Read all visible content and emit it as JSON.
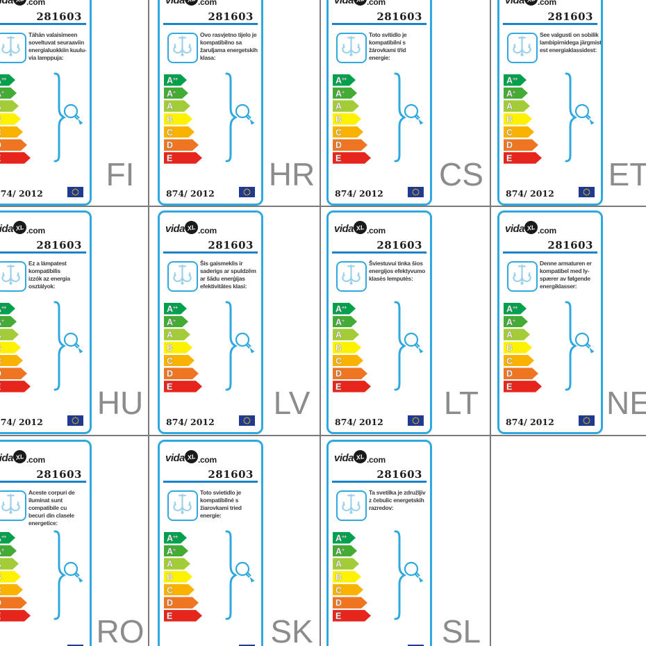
{
  "page": {
    "background": "#ffffff",
    "grid_line_color": "#7a7a7a"
  },
  "card": {
    "brand": {
      "prefix": "vida",
      "mark": "XL",
      "suffix": ".com"
    },
    "product_number": "281603",
    "regulation": "874/ 2012",
    "border_color": "#2FA8DF",
    "underline_color": "#1C82C8",
    "accent_blue": "#2FA8DF",
    "icon_blue": "#9BD0EB",
    "eu_flag": {
      "background": "#203A8F",
      "stars": "#FFCC00"
    },
    "arrows": [
      {
        "label": "A",
        "sup": "++",
        "color": "#00A04D",
        "width": 33
      },
      {
        "label": "A",
        "sup": "+",
        "color": "#44AC34",
        "width": 35
      },
      {
        "label": "A",
        "sup": "",
        "color": "#A3CC38",
        "width": 38
      },
      {
        "label": "B",
        "sup": "",
        "color": "#FFF200",
        "width": 41
      },
      {
        "label": "C",
        "sup": "",
        "color": "#F9B200",
        "width": 44
      },
      {
        "label": "D",
        "sup": "",
        "color": "#EE7623",
        "width": 50
      },
      {
        "label": "E",
        "sup": "",
        "color": "#E6261D",
        "width": 55
      }
    ]
  },
  "labels": [
    {
      "code": "FI",
      "col": 0,
      "row": 0,
      "description": "Tähän valaisimeen\nsoveltuvat seuraaviin\nenergialuokkiin kuulu-\nvia lamppuja:"
    },
    {
      "code": "HR",
      "col": 1,
      "row": 0,
      "description": "Ovo rasvjetno tijelo je\nkompatibilno sa\nžaruljama energetskih\nklasa:"
    },
    {
      "code": "CS",
      "col": 2,
      "row": 0,
      "description": "Toto svítidlo je\nkompatibilní s\nžárovkami tříd\nenergie:"
    },
    {
      "code": "ET",
      "col": 3,
      "row": 0,
      "description": "See valgusti on sobilik\nlambipirnidega järgmist-\nest energiaklassidest:"
    },
    {
      "code": "HU",
      "col": 0,
      "row": 1,
      "description": "Ez a lámpatest\nkompatibilis\nizzók az energia\nosztályok:"
    },
    {
      "code": "LV",
      "col": 1,
      "row": 1,
      "description": "Šis gaismeklis ir\nsaderigs ar spuldzēm\nar šādu enerģijas\nefektivitātes klasi:"
    },
    {
      "code": "LT",
      "col": 2,
      "row": 1,
      "description": "Šviestuvui tinka šios\nenergijos efektyvumo\nklasės lemputės:"
    },
    {
      "code": "NE",
      "col": 3,
      "row": 1,
      "description": "Denne armaturen er\nkompatibel med ly-\nspærer av følgende\nenergiklasser:"
    },
    {
      "code": "RO",
      "col": 0,
      "row": 2,
      "description": "Aceste corpuri de\niluminat sunt\ncompatibile cu\nbecuri din clasele\nenergetice:"
    },
    {
      "code": "SK",
      "col": 1,
      "row": 2,
      "description": "Toto svietidlo je\nkompatibilné s\nžiarovkami tried\nenergie:"
    },
    {
      "code": "SL",
      "col": 2,
      "row": 2,
      "description": "Ta svetilka je združljiv\nz čebulic energetskih\nrazredov:"
    }
  ]
}
